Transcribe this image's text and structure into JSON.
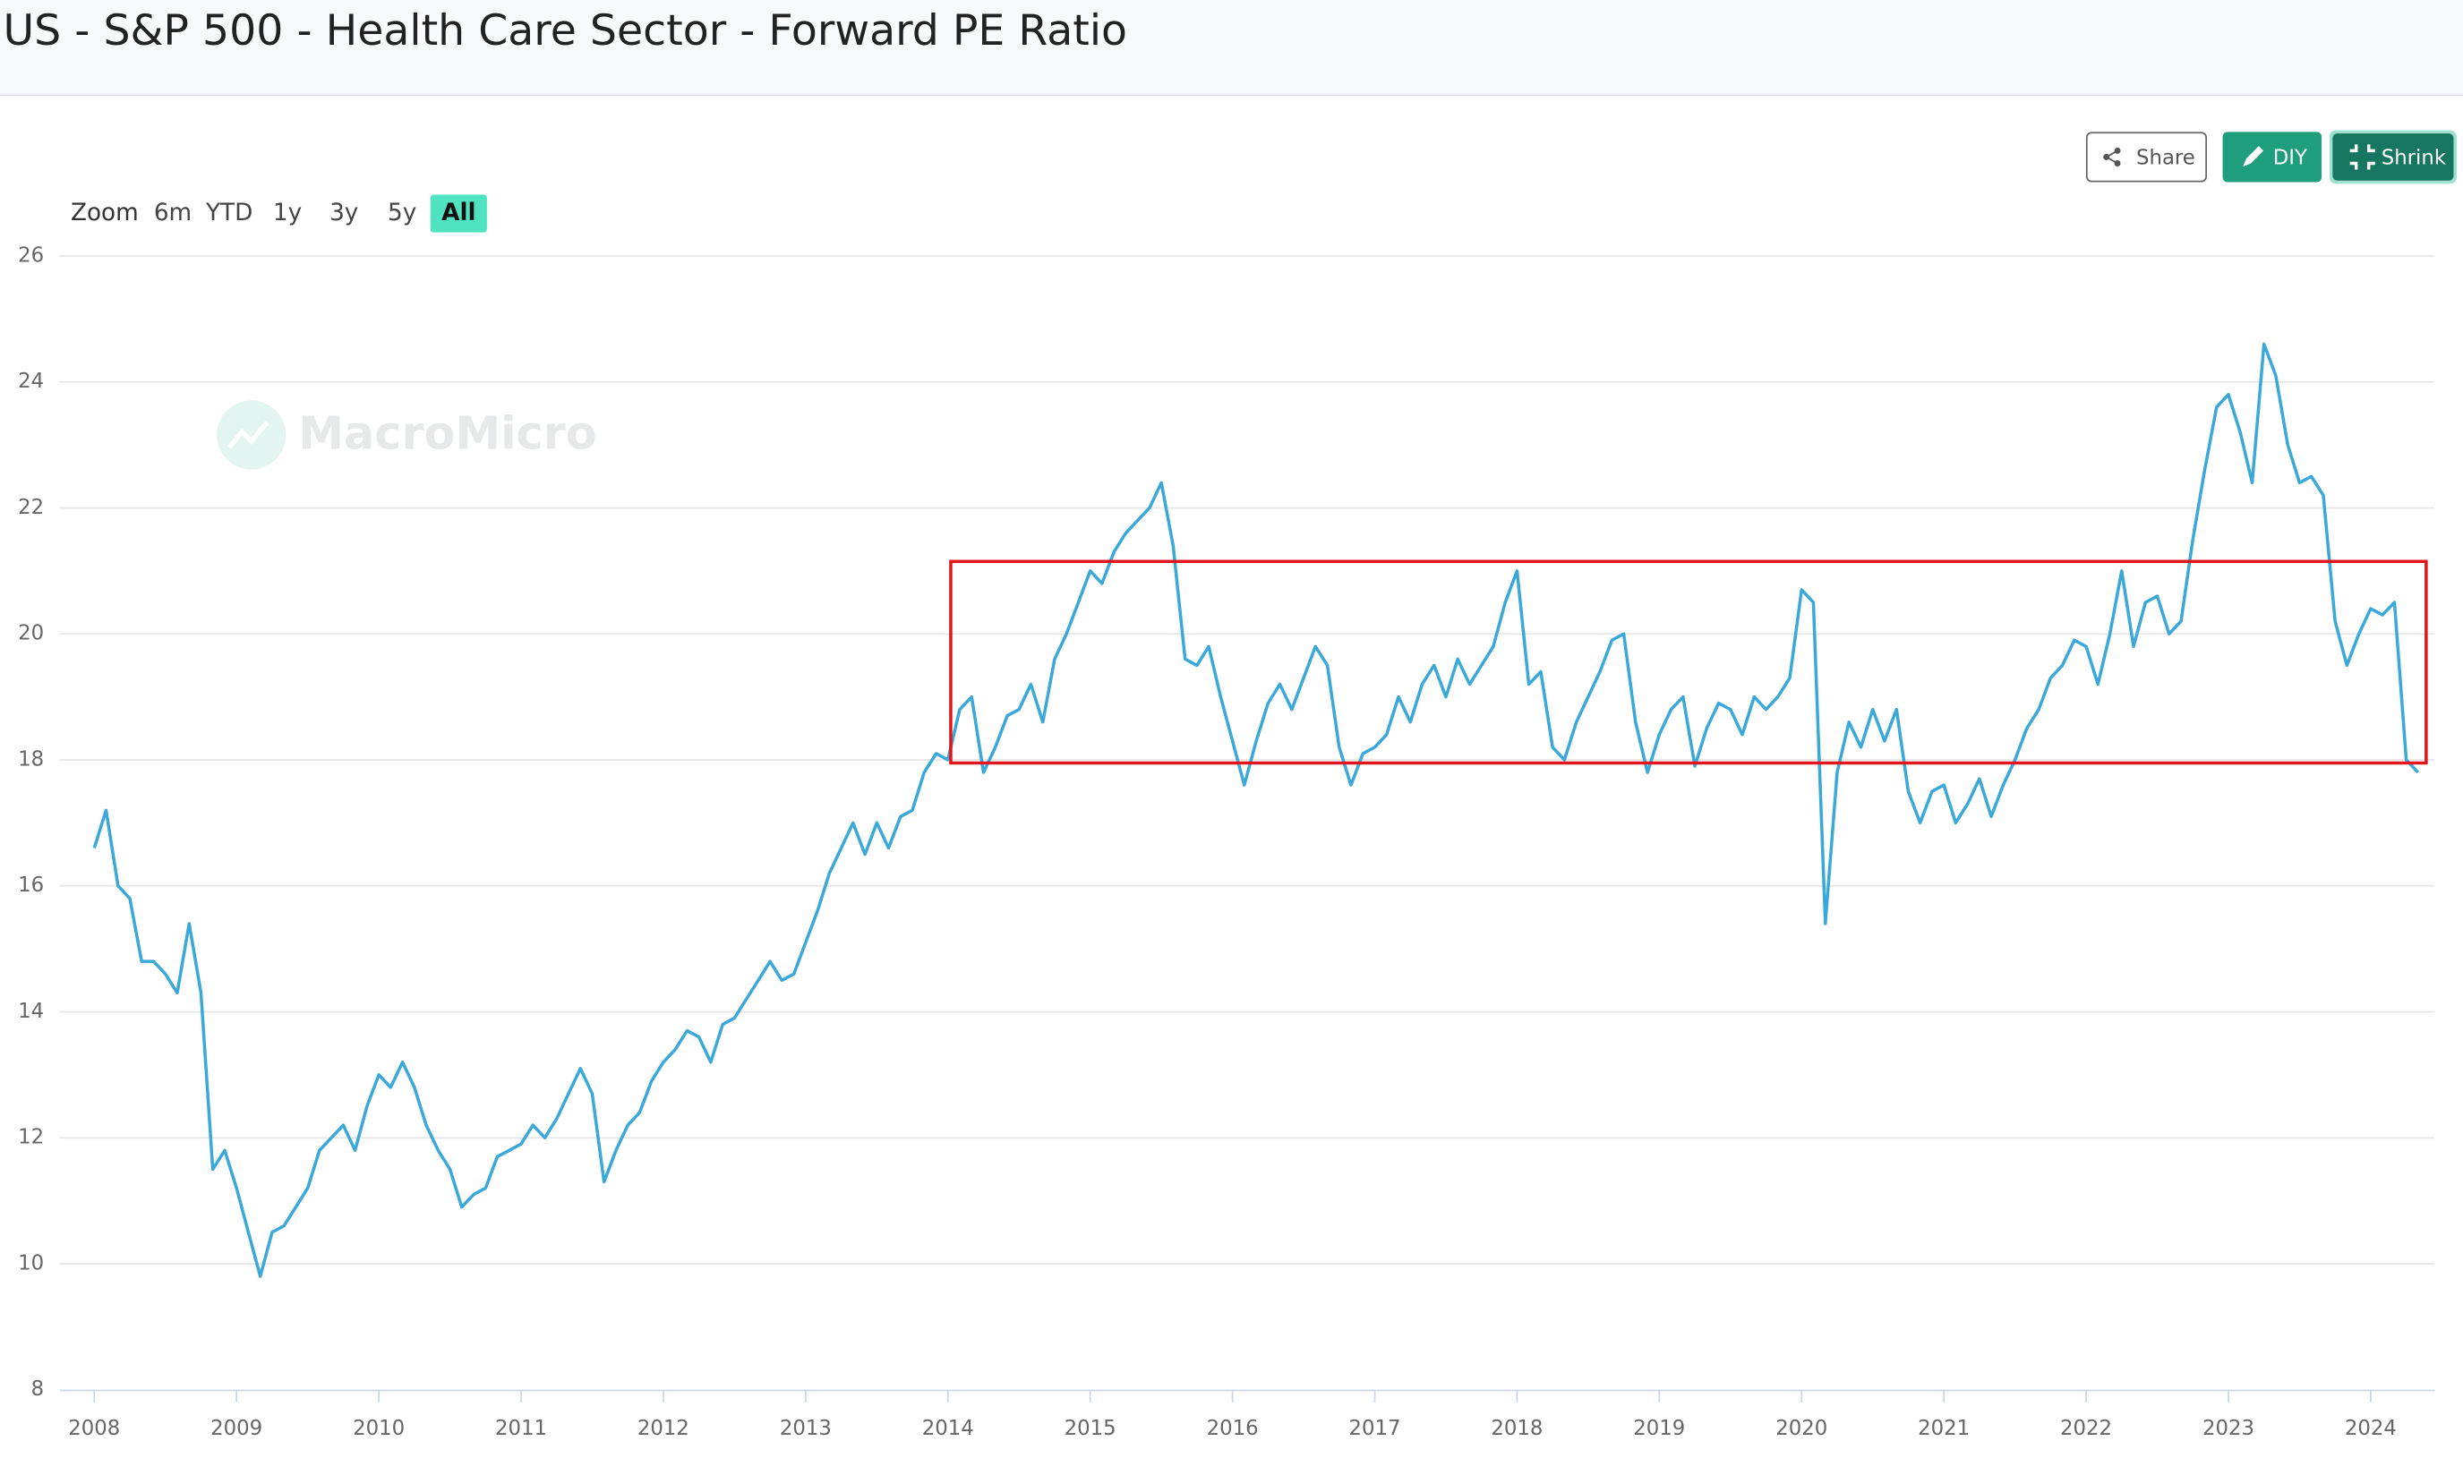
{
  "toolbar": {
    "buttons": [
      "Share",
      "DIY",
      "Shrink"
    ],
    "zoom_label": "Zoom",
    "zoom_options": [
      "6m",
      "YTD",
      "1y",
      "3y",
      "5y",
      "All"
    ],
    "selected_zoom": 5
  },
  "chart_data": {
    "type": "line",
    "title": "US - S&P 500 - Health Care Sector - Forward PE Ratio",
    "watermark": "MacroMicro",
    "x": [
      2008,
      2008.083,
      2008.167,
      2008.25,
      2008.333,
      2008.417,
      2008.5,
      2008.583,
      2008.667,
      2008.75,
      2008.833,
      2008.917,
      2009,
      2009.083,
      2009.167,
      2009.25,
      2009.333,
      2009.417,
      2009.5,
      2009.583,
      2009.667,
      2009.75,
      2009.833,
      2009.917,
      2010,
      2010.083,
      2010.167,
      2010.25,
      2010.333,
      2010.417,
      2010.5,
      2010.583,
      2010.667,
      2010.75,
      2010.833,
      2010.917,
      2011,
      2011.083,
      2011.167,
      2011.25,
      2011.333,
      2011.417,
      2011.5,
      2011.583,
      2011.667,
      2011.75,
      2011.833,
      2011.917,
      2012,
      2012.083,
      2012.167,
      2012.25,
      2012.333,
      2012.417,
      2012.5,
      2012.583,
      2012.667,
      2012.75,
      2012.833,
      2012.917,
      2013,
      2013.083,
      2013.167,
      2013.25,
      2013.333,
      2013.417,
      2013.5,
      2013.583,
      2013.667,
      2013.75,
      2013.833,
      2013.917,
      2014,
      2014.083,
      2014.167,
      2014.25,
      2014.333,
      2014.417,
      2014.5,
      2014.583,
      2014.667,
      2014.75,
      2014.833,
      2014.917,
      2015,
      2015.083,
      2015.167,
      2015.25,
      2015.333,
      2015.417,
      2015.5,
      2015.583,
      2015.667,
      2015.75,
      2015.833,
      2015.917,
      2016,
      2016.083,
      2016.167,
      2016.25,
      2016.333,
      2016.417,
      2016.5,
      2016.583,
      2016.667,
      2016.75,
      2016.833,
      2016.917,
      2017,
      2017.083,
      2017.167,
      2017.25,
      2017.333,
      2017.417,
      2017.5,
      2017.583,
      2017.667,
      2017.75,
      2017.833,
      2017.917,
      2018,
      2018.083,
      2018.167,
      2018.25,
      2018.333,
      2018.417,
      2018.5,
      2018.583,
      2018.667,
      2018.75,
      2018.833,
      2018.917,
      2019,
      2019.083,
      2019.167,
      2019.25,
      2019.333,
      2019.417,
      2019.5,
      2019.583,
      2019.667,
      2019.75,
      2019.833,
      2019.917,
      2020,
      2020.083,
      2020.167,
      2020.25,
      2020.333,
      2020.417,
      2020.5,
      2020.583,
      2020.667,
      2020.75,
      2020.833,
      2020.917,
      2021,
      2021.083,
      2021.167,
      2021.25,
      2021.333,
      2021.417,
      2021.5,
      2021.583,
      2021.667,
      2021.75,
      2021.833,
      2021.917,
      2022,
      2022.083,
      2022.167,
      2022.25,
      2022.333,
      2022.417,
      2022.5,
      2022.583,
      2022.667,
      2022.75,
      2022.833,
      2022.917,
      2023,
      2023.083,
      2023.167,
      2023.25,
      2023.333,
      2023.417,
      2023.5,
      2023.583,
      2023.667,
      2023.75,
      2023.833,
      2023.917,
      2024,
      2024.083,
      2024.167,
      2024.25,
      2024.333
    ],
    "series": [
      {
        "color": "#3aa8d8",
        "values": [
          16.6,
          17.2,
          16.0,
          15.8,
          14.8,
          14.8,
          14.6,
          14.3,
          15.4,
          14.3,
          11.5,
          11.8,
          11.2,
          10.5,
          9.8,
          10.5,
          10.6,
          10.9,
          11.2,
          11.8,
          12.0,
          12.2,
          11.8,
          12.5,
          13.0,
          12.8,
          13.2,
          12.8,
          12.2,
          11.8,
          11.5,
          10.9,
          11.1,
          11.2,
          11.7,
          11.8,
          11.9,
          12.2,
          12.0,
          12.3,
          12.7,
          13.1,
          12.7,
          11.3,
          11.8,
          12.2,
          12.4,
          12.9,
          13.2,
          13.4,
          13.7,
          13.6,
          13.2,
          13.8,
          13.9,
          14.2,
          14.5,
          14.8,
          14.5,
          14.6,
          15.1,
          15.6,
          16.2,
          16.6,
          17.0,
          16.5,
          17.0,
          16.6,
          17.1,
          17.2,
          17.8,
          18.1,
          18.0,
          18.8,
          19.0,
          17.8,
          18.2,
          18.7,
          18.8,
          19.2,
          18.6,
          19.6,
          20.0,
          20.5,
          21.0,
          20.8,
          21.3,
          21.6,
          21.8,
          22.0,
          22.4,
          21.4,
          19.6,
          19.5,
          19.8,
          19.0,
          18.3,
          17.6,
          18.3,
          18.9,
          19.2,
          18.8,
          19.3,
          19.8,
          19.5,
          18.2,
          17.6,
          18.1,
          18.2,
          18.4,
          19.0,
          18.6,
          19.2,
          19.5,
          19.0,
          19.6,
          19.2,
          19.5,
          19.8,
          20.5,
          21.0,
          19.2,
          19.4,
          18.2,
          18.0,
          18.6,
          19.0,
          19.4,
          19.9,
          20.0,
          18.6,
          17.8,
          18.4,
          18.8,
          19.0,
          17.9,
          18.5,
          18.9,
          18.8,
          18.4,
          19.0,
          18.8,
          19.0,
          19.3,
          20.7,
          20.5,
          15.4,
          17.8,
          18.6,
          18.2,
          18.8,
          18.3,
          18.8,
          17.5,
          17.0,
          17.5,
          17.6,
          17.0,
          17.3,
          17.7,
          17.1,
          17.6,
          18.0,
          18.5,
          18.8,
          19.3,
          19.5,
          19.9,
          19.8,
          19.2,
          20.0,
          21.0,
          19.8,
          20.5,
          20.6,
          20.0,
          20.2,
          21.5,
          22.6,
          23.6,
          23.8,
          23.2,
          22.4,
          24.6,
          24.1,
          23.0,
          22.4,
          22.5,
          22.2,
          20.2,
          19.5,
          20.0,
          20.4,
          20.3,
          20.5,
          18.0,
          17.8
        ]
      }
    ],
    "xlim": [
      2008,
      2024.45
    ],
    "xticks": [
      2008,
      2009,
      2010,
      2011,
      2012,
      2013,
      2014,
      2015,
      2016,
      2017,
      2018,
      2019,
      2020,
      2021,
      2022,
      2023,
      2024
    ],
    "ylim": [
      8,
      26
    ],
    "yticks": [
      8,
      10,
      12,
      14,
      16,
      18,
      20,
      22,
      24,
      26
    ],
    "grid": true,
    "highlight_box": {
      "xlim": [
        2014.02,
        2024.39
      ],
      "ylim": [
        17.95,
        21.15
      ],
      "color": "#e0161b"
    }
  }
}
